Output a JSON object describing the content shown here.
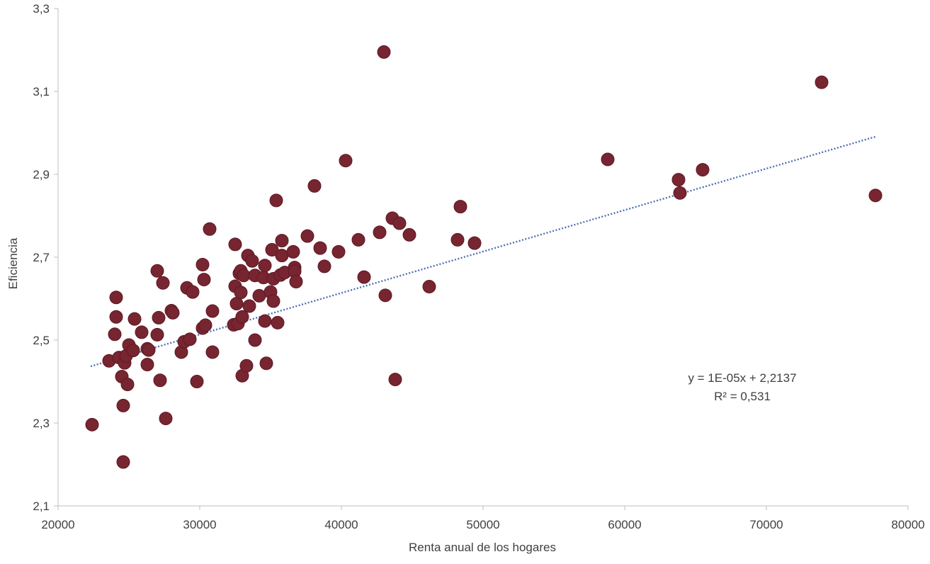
{
  "chart_data": {
    "type": "scatter",
    "title": "",
    "xlabel": "Renta anual de los hogares",
    "ylabel": "Eficiencia",
    "xlim": [
      20000,
      80000
    ],
    "ylim": [
      2.1,
      3.3
    ],
    "x_ticks": [
      20000,
      30000,
      40000,
      50000,
      60000,
      70000,
      80000
    ],
    "x_tick_labels": [
      "20000",
      "30000",
      "40000",
      "50000",
      "60000",
      "70000",
      "80000"
    ],
    "y_ticks": [
      2.1,
      2.3,
      2.5,
      2.7,
      2.9,
      3.1,
      3.3
    ],
    "y_tick_labels": [
      "2,1",
      "2,3",
      "2,5",
      "2,7",
      "2,9",
      "3,1",
      "3,3"
    ],
    "grid": false,
    "legend": "none",
    "marker_color": "#772530",
    "trendline_color": "#4e6fb3",
    "trendline": {
      "type": "linear",
      "slope": 1e-05,
      "intercept": 2.2137,
      "x_range": [
        22300,
        77800
      ],
      "equation": "y = 1E-05x + 2,2137",
      "r_squared": "R² = 0,531"
    },
    "series": [
      {
        "points": [
          [
            22400,
            2.296
          ],
          [
            23600,
            2.45
          ],
          [
            24000,
            2.514
          ],
          [
            24100,
            2.603
          ],
          [
            24100,
            2.556
          ],
          [
            24300,
            2.458
          ],
          [
            24500,
            2.412
          ],
          [
            24600,
            2.342
          ],
          [
            24600,
            2.206
          ],
          [
            24700,
            2.445
          ],
          [
            24900,
            2.393
          ],
          [
            24800,
            2.462
          ],
          [
            25000,
            2.488
          ],
          [
            25300,
            2.475
          ],
          [
            25400,
            2.551
          ],
          [
            25900,
            2.519
          ],
          [
            26300,
            2.479
          ],
          [
            26300,
            2.441
          ],
          [
            26400,
            2.476
          ],
          [
            27000,
            2.667
          ],
          [
            27000,
            2.513
          ],
          [
            27100,
            2.554
          ],
          [
            27200,
            2.403
          ],
          [
            27400,
            2.638
          ],
          [
            27600,
            2.311
          ],
          [
            28000,
            2.571
          ],
          [
            28100,
            2.566
          ],
          [
            28700,
            2.471
          ],
          [
            28900,
            2.496
          ],
          [
            29100,
            2.626
          ],
          [
            29300,
            2.502
          ],
          [
            29500,
            2.616
          ],
          [
            29800,
            2.4
          ],
          [
            30200,
            2.682
          ],
          [
            30200,
            2.529
          ],
          [
            30300,
            2.646
          ],
          [
            30400,
            2.536
          ],
          [
            30700,
            2.768
          ],
          [
            30900,
            2.57
          ],
          [
            30900,
            2.471
          ],
          [
            32400,
            2.537
          ],
          [
            32500,
            2.731
          ],
          [
            32500,
            2.63
          ],
          [
            32600,
            2.588
          ],
          [
            32700,
            2.54
          ],
          [
            32800,
            2.661
          ],
          [
            32900,
            2.667
          ],
          [
            32900,
            2.615
          ],
          [
            33000,
            2.556
          ],
          [
            33000,
            2.414
          ],
          [
            33100,
            2.656
          ],
          [
            33300,
            2.438
          ],
          [
            33400,
            2.704
          ],
          [
            33500,
            2.582
          ],
          [
            33700,
            2.691
          ],
          [
            33900,
            2.5
          ],
          [
            33900,
            2.656
          ],
          [
            34200,
            2.607
          ],
          [
            34500,
            2.651
          ],
          [
            34600,
            2.68
          ],
          [
            34600,
            2.546
          ],
          [
            34700,
            2.444
          ],
          [
            35000,
            2.616
          ],
          [
            35100,
            2.718
          ],
          [
            35200,
            2.594
          ],
          [
            35200,
            2.648
          ],
          [
            35400,
            2.837
          ],
          [
            35500,
            2.542
          ],
          [
            35700,
            2.657
          ],
          [
            35800,
            2.704
          ],
          [
            35800,
            2.74
          ],
          [
            36000,
            2.663
          ],
          [
            36600,
            2.713
          ],
          [
            36700,
            2.675
          ],
          [
            36700,
            2.666
          ],
          [
            36800,
            2.641
          ],
          [
            37600,
            2.751
          ],
          [
            38100,
            2.872
          ],
          [
            38500,
            2.722
          ],
          [
            38800,
            2.678
          ],
          [
            39800,
            2.713
          ],
          [
            40300,
            2.933
          ],
          [
            41200,
            2.742
          ],
          [
            41600,
            2.652
          ],
          [
            42700,
            2.76
          ],
          [
            43000,
            3.195
          ],
          [
            43100,
            2.608
          ],
          [
            43600,
            2.794
          ],
          [
            43800,
            2.405
          ],
          [
            44100,
            2.782
          ],
          [
            44800,
            2.754
          ],
          [
            46200,
            2.629
          ],
          [
            48200,
            2.742
          ],
          [
            48400,
            2.822
          ],
          [
            49400,
            2.734
          ],
          [
            58800,
            2.936
          ],
          [
            63800,
            2.887
          ],
          [
            63900,
            2.855
          ],
          [
            65500,
            2.911
          ],
          [
            73900,
            3.122
          ],
          [
            77700,
            2.849
          ]
        ]
      }
    ]
  }
}
